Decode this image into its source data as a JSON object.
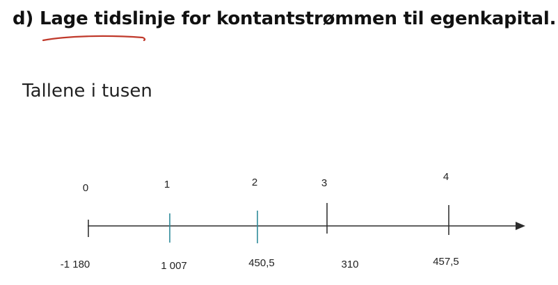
{
  "heading": {
    "prefix": "d)",
    "text": "Lage tidslinje for kontantstrømmen til egenkapital."
  },
  "subtitle": "Tallene i tusen",
  "colors": {
    "axis": "#2b2b2b",
    "tick_teal": "#2e8b9a",
    "tick_dark": "#333333",
    "underline": "#c0392b"
  },
  "chart_data": {
    "type": "timeline",
    "periods": [
      "0",
      "1",
      "2",
      "3",
      "4"
    ],
    "values": [
      "-1 180",
      "1 007",
      "450,5",
      "310",
      "457,5"
    ],
    "tick_colors": [
      "dark",
      "teal",
      "teal",
      "dark",
      "dark"
    ]
  }
}
